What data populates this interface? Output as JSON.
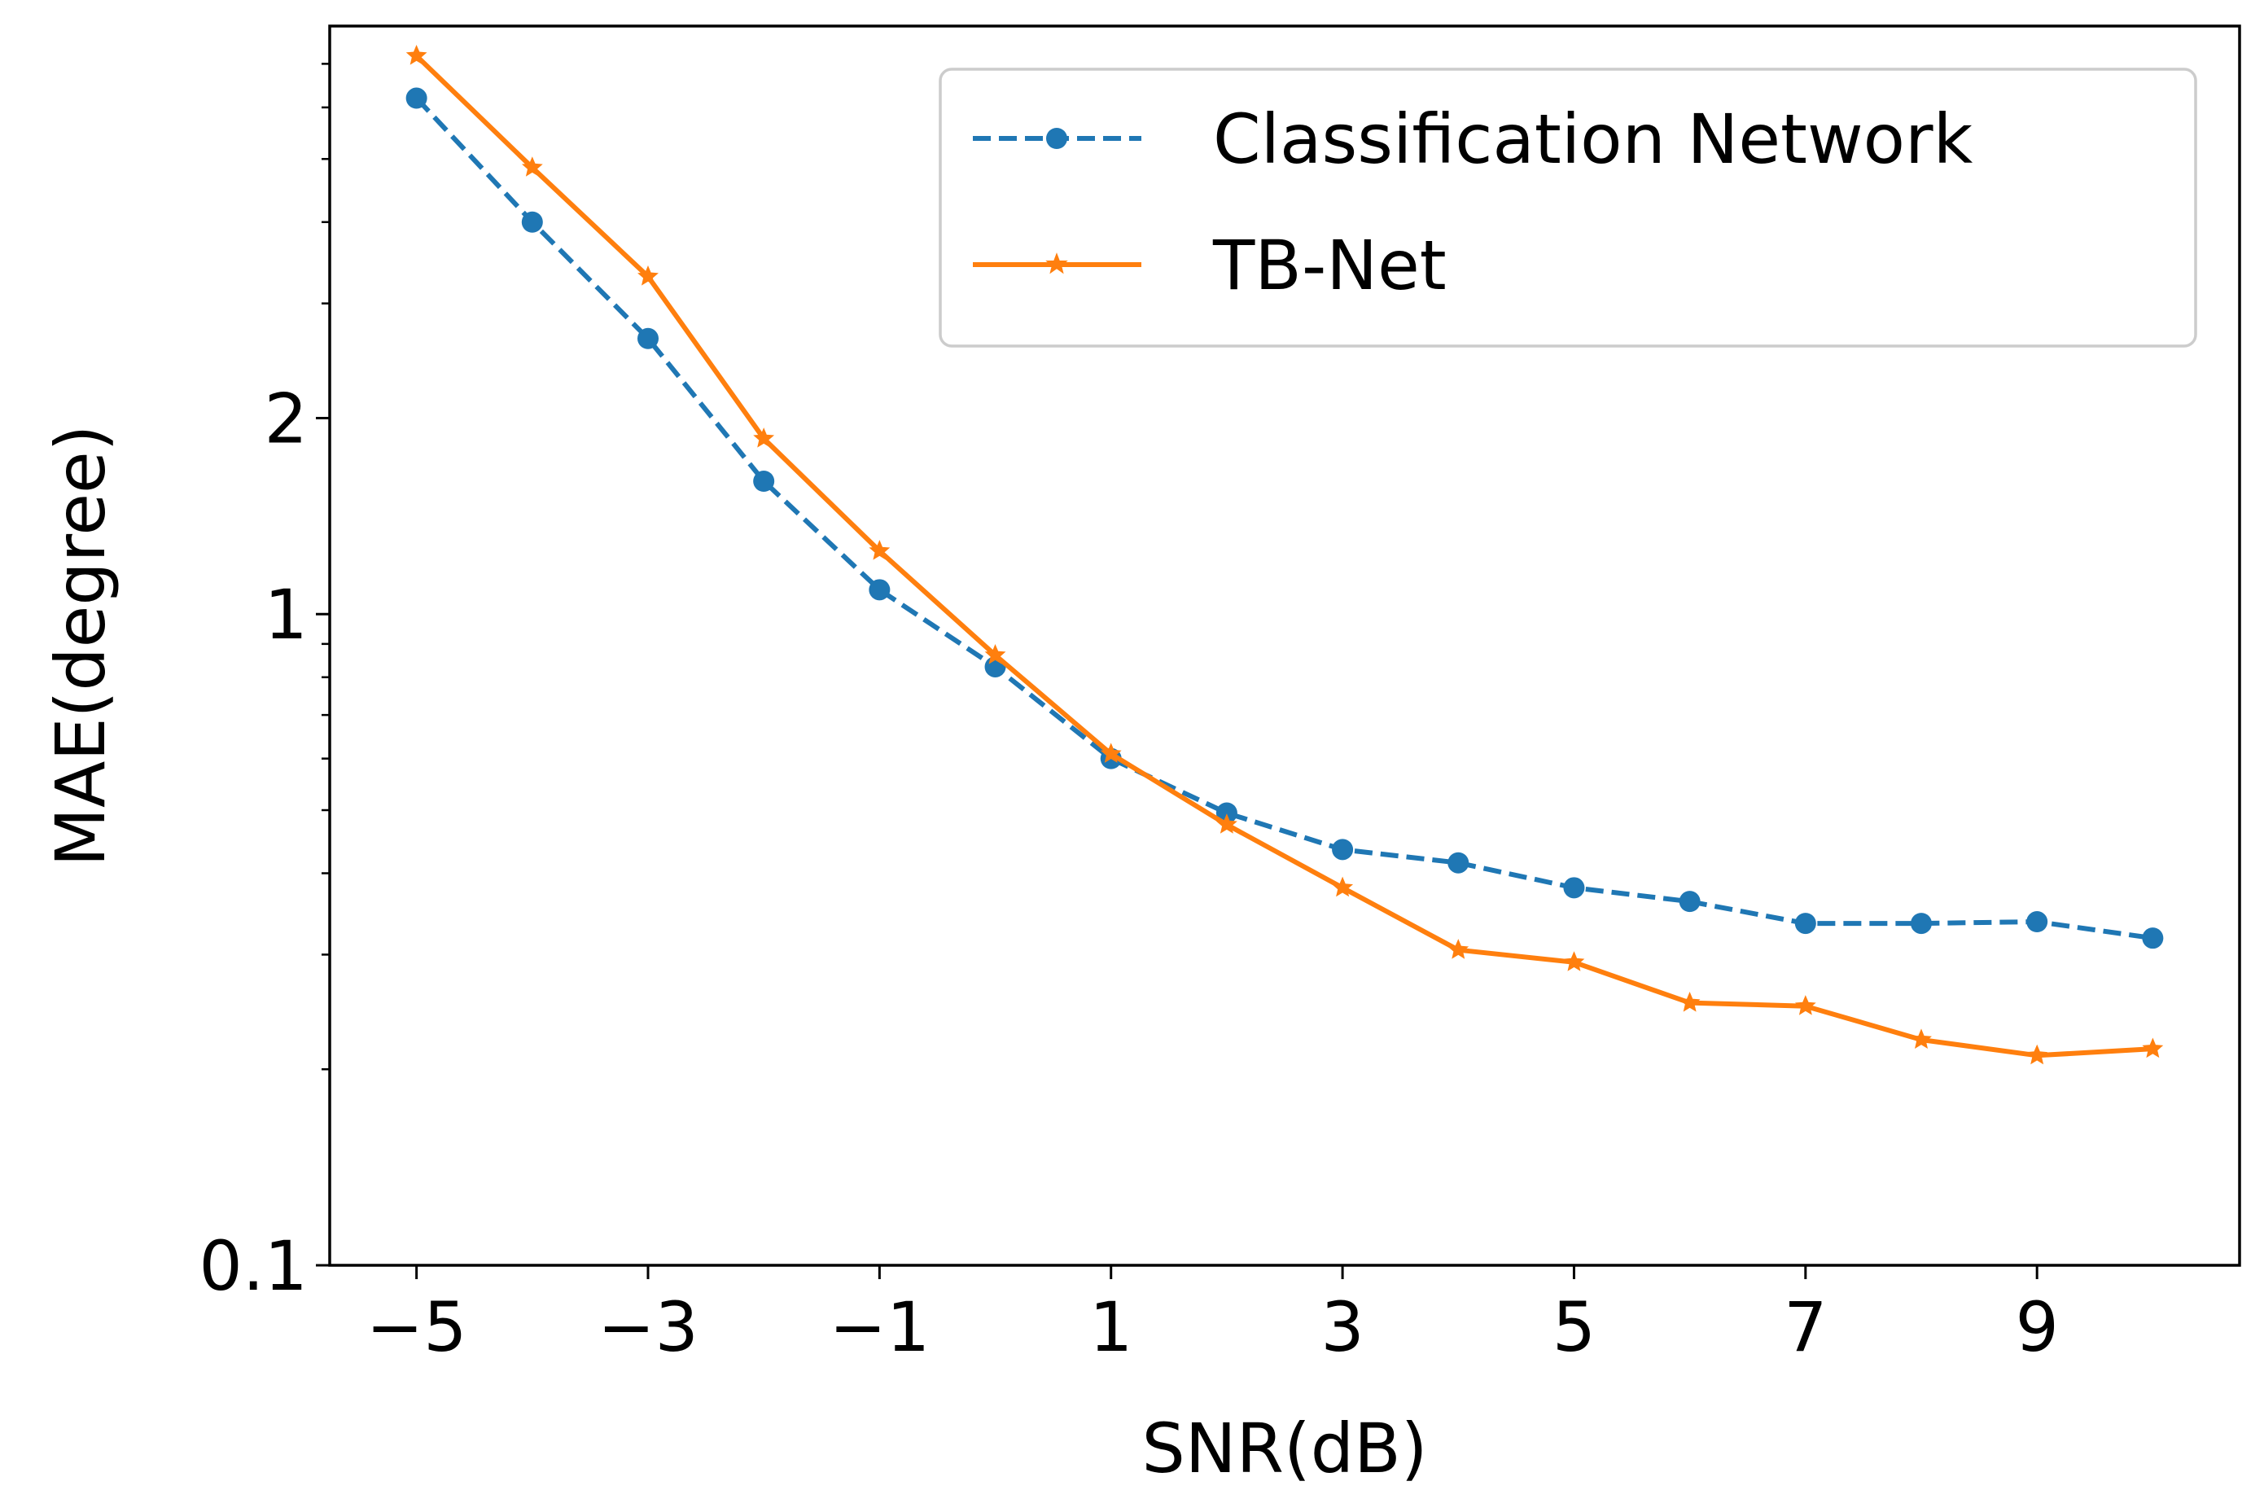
{
  "chart_data": {
    "type": "line",
    "xlabel": "SNR(dB)",
    "ylabel": "MAE(degree)",
    "yscale": "log",
    "xlim": [
      -5.75,
      10.75
    ],
    "ylim": [
      0.1,
      8.0
    ],
    "xticks": [
      -5,
      -3,
      -1,
      1,
      3,
      5,
      7,
      9
    ],
    "xtick_labels": [
      "−5",
      "−3",
      "−1",
      "1",
      "3",
      "5",
      "7",
      "9"
    ],
    "yticks": [
      0.1,
      1,
      2
    ],
    "ytick_labels": [
      "0.1",
      "1",
      "2"
    ],
    "legend_position": "upper-right",
    "x": [
      -5,
      -4,
      -3,
      -2,
      -1,
      0,
      1,
      2,
      3,
      4,
      5,
      6,
      7,
      8,
      9,
      10
    ],
    "series": [
      {
        "name": "Classification Network",
        "color": "#1f77b4",
        "linestyle": "dashed",
        "marker": "circle",
        "values": [
          6.2,
          4.0,
          2.65,
          1.6,
          1.09,
          0.83,
          0.6,
          0.495,
          0.435,
          0.415,
          0.38,
          0.362,
          0.335,
          0.335,
          0.337,
          0.318
        ]
      },
      {
        "name": "TB-Net",
        "color": "#ff7f0e",
        "linestyle": "solid",
        "marker": "star",
        "values": [
          7.2,
          4.85,
          3.3,
          1.86,
          1.25,
          0.865,
          0.61,
          0.475,
          0.38,
          0.305,
          0.292,
          0.253,
          0.25,
          0.222,
          0.21,
          0.215
        ]
      }
    ]
  }
}
